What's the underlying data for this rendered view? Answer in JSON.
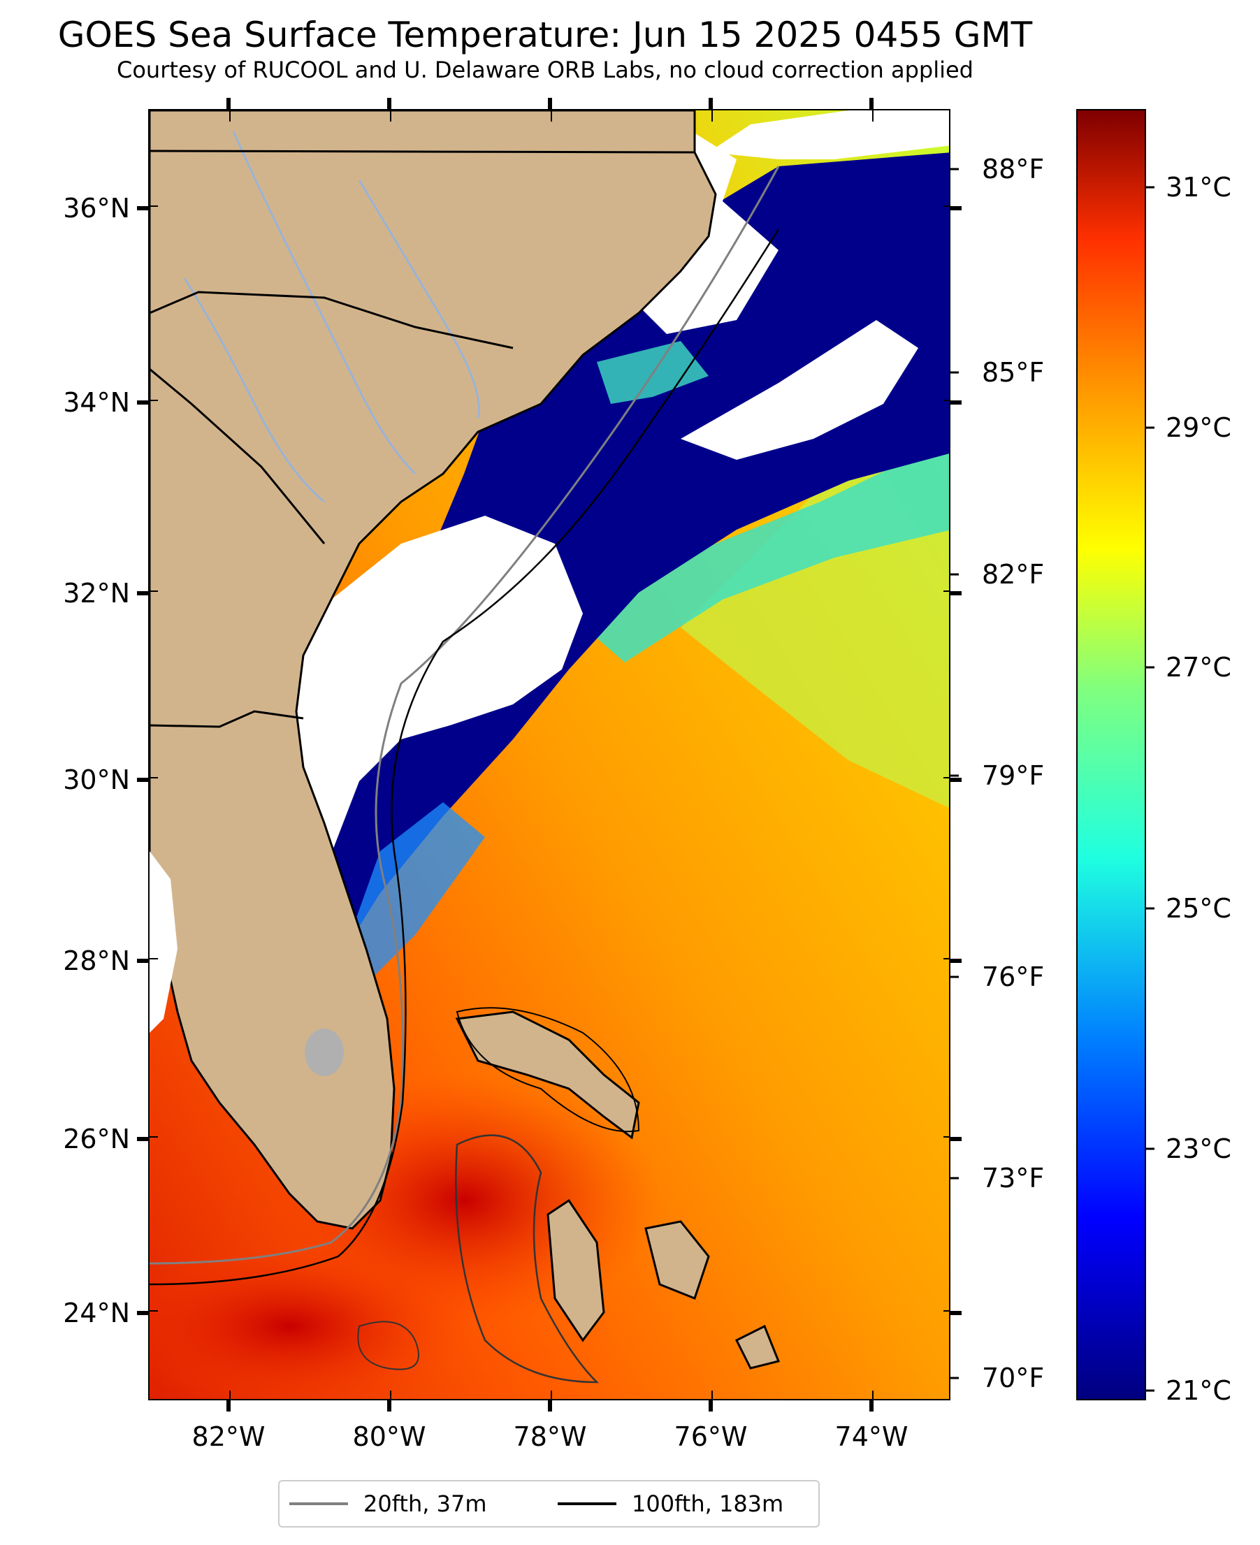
{
  "title": "GOES Sea Surface Temperature: Jun 15 2025 0455 GMT",
  "subtitle": "Courtesy of RUCOOL and U. Delaware ORB Labs, no cloud correction applied",
  "map": {
    "lat_ticks": [
      "36°N",
      "34°N",
      "32°N",
      "30°N",
      "28°N",
      "26°N",
      "24°N"
    ],
    "lon_ticks": [
      "82°W",
      "80°W",
      "78°W",
      "76°W",
      "74°W"
    ],
    "fahrenheit_ticks": [
      "88°F",
      "85°F",
      "82°F",
      "79°F",
      "76°F",
      "73°F",
      "70°F"
    ]
  },
  "colorbar": {
    "celsius_ticks": [
      "31°C",
      "29°C",
      "27°C",
      "25°C",
      "23°C",
      "21°C"
    ],
    "colormap": "jet",
    "range_c": [
      20.8,
      31.8
    ]
  },
  "legend": {
    "items": [
      {
        "label": "20fth, 37m",
        "color": "#808080"
      },
      {
        "label": "100fth, 183m",
        "color": "#000000"
      }
    ]
  },
  "colors": {
    "land": "#d2b48c",
    "cloud": "#ffffff",
    "cold_water": "#00008b",
    "warm_water": "#ff9a00",
    "hot_water": "#e82000",
    "rivers": "#9ab3d5"
  }
}
